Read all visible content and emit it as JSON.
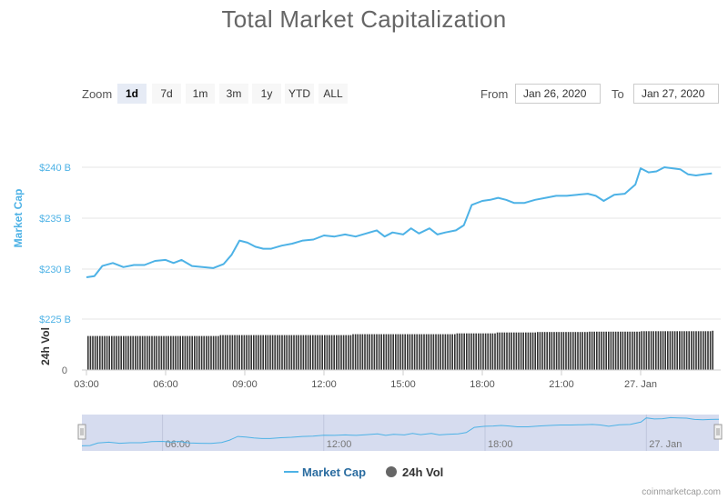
{
  "title": "Total Market Capitalization",
  "zoom": {
    "label": "Zoom",
    "buttons": [
      "1d",
      "7d",
      "1m",
      "3m",
      "1y",
      "YTD",
      "ALL"
    ],
    "active": "1d"
  },
  "range": {
    "from_label": "From",
    "from_value": "Jan 26, 2020",
    "to_label": "To",
    "to_value": "Jan 27, 2020"
  },
  "legend": {
    "market_cap": "Market Cap",
    "vol": "24h Vol"
  },
  "credit": "coinmarketcap.com",
  "colors": {
    "market_cap": "#4db2e6",
    "volume": "#333333",
    "navigator_mask": "#d6dcef",
    "axis_label": "#4db2e6"
  },
  "chart_data": {
    "type": "line",
    "title": "Total Market Capitalization",
    "xlabel": "",
    "ylabel": "Market Cap",
    "ylabel2": "24h Vol",
    "x_ticks": [
      "03:00",
      "06:00",
      "09:00",
      "12:00",
      "15:00",
      "18:00",
      "21:00",
      "27. Jan"
    ],
    "y_ticks": [
      "$240 B",
      "$235 B",
      "$230 B",
      "$225 B"
    ],
    "y_tick_values": [
      240,
      235,
      230,
      225
    ],
    "vol_ticks": [
      "0"
    ],
    "ylim": [
      225,
      240
    ],
    "x_range_hours": [
      3,
      26.7
    ],
    "navigator_ticks": [
      "06:00",
      "12:00",
      "18:00",
      "27. Jan"
    ],
    "series": [
      {
        "name": "Market Cap",
        "unit": "B USD",
        "points": [
          [
            3.0,
            229.2
          ],
          [
            3.3,
            229.3
          ],
          [
            3.6,
            230.3
          ],
          [
            4.0,
            230.6
          ],
          [
            4.4,
            230.2
          ],
          [
            4.8,
            230.4
          ],
          [
            5.2,
            230.4
          ],
          [
            5.6,
            230.8
          ],
          [
            6.0,
            230.9
          ],
          [
            6.3,
            230.6
          ],
          [
            6.6,
            230.9
          ],
          [
            7.0,
            230.3
          ],
          [
            7.4,
            230.2
          ],
          [
            7.8,
            230.1
          ],
          [
            8.2,
            230.5
          ],
          [
            8.5,
            231.4
          ],
          [
            8.8,
            232.8
          ],
          [
            9.1,
            232.6
          ],
          [
            9.4,
            232.2
          ],
          [
            9.7,
            232.0
          ],
          [
            10.0,
            232.0
          ],
          [
            10.4,
            232.3
          ],
          [
            10.8,
            232.5
          ],
          [
            11.2,
            232.8
          ],
          [
            11.6,
            232.9
          ],
          [
            12.0,
            233.3
          ],
          [
            12.4,
            233.2
          ],
          [
            12.8,
            233.4
          ],
          [
            13.2,
            233.2
          ],
          [
            13.6,
            233.5
          ],
          [
            14.0,
            233.8
          ],
          [
            14.3,
            233.2
          ],
          [
            14.6,
            233.6
          ],
          [
            15.0,
            233.4
          ],
          [
            15.3,
            234.0
          ],
          [
            15.6,
            233.5
          ],
          [
            16.0,
            234.0
          ],
          [
            16.3,
            233.4
          ],
          [
            16.6,
            233.6
          ],
          [
            17.0,
            233.8
          ],
          [
            17.3,
            234.3
          ],
          [
            17.6,
            236.3
          ],
          [
            18.0,
            236.7
          ],
          [
            18.3,
            236.8
          ],
          [
            18.6,
            237.0
          ],
          [
            18.9,
            236.8
          ],
          [
            19.2,
            236.5
          ],
          [
            19.6,
            236.5
          ],
          [
            20.0,
            236.8
          ],
          [
            20.4,
            237.0
          ],
          [
            20.8,
            237.2
          ],
          [
            21.2,
            237.2
          ],
          [
            21.6,
            237.3
          ],
          [
            22.0,
            237.4
          ],
          [
            22.3,
            237.2
          ],
          [
            22.6,
            236.7
          ],
          [
            23.0,
            237.3
          ],
          [
            23.4,
            237.4
          ],
          [
            23.8,
            238.3
          ],
          [
            24.0,
            239.9
          ],
          [
            24.3,
            239.5
          ],
          [
            24.6,
            239.6
          ],
          [
            24.9,
            240.0
          ],
          [
            25.2,
            239.9
          ],
          [
            25.5,
            239.8
          ],
          [
            25.8,
            239.3
          ],
          [
            26.1,
            239.2
          ],
          [
            26.4,
            239.3
          ],
          [
            26.7,
            239.4
          ]
        ]
      },
      {
        "name": "24h Vol",
        "relative_levels": [
          [
            3.0,
            0.78
          ],
          [
            8.0,
            0.8
          ],
          [
            13.0,
            0.82
          ],
          [
            17.0,
            0.84
          ],
          [
            18.5,
            0.86
          ],
          [
            20.0,
            0.87
          ],
          [
            22.0,
            0.88
          ],
          [
            24.0,
            0.89
          ],
          [
            26.7,
            0.9
          ]
        ]
      }
    ]
  }
}
